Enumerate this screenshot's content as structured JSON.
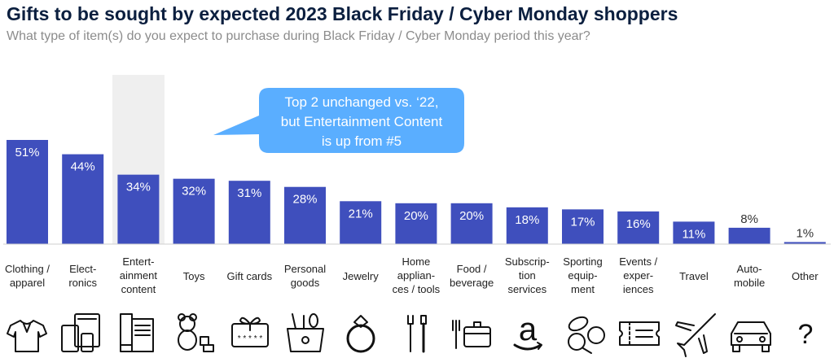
{
  "title": "Gifts to be sought by expected 2023 Black Friday / Cyber Monday shoppers",
  "subtitle": "What type of item(s) do you expect to purchase during Black Friday / Cyber Monday period this year?",
  "callout": {
    "lines": [
      "Top 2 unchanged vs. ‘22,",
      "but Entertainment Content",
      "is up from #5"
    ],
    "color": "#5aaeff"
  },
  "chart_data": {
    "type": "bar",
    "title": "Gifts to be sought by expected 2023 Black Friday / Cyber Monday shoppers",
    "subtitle": "What type of item(s) do you expect to purchase during Black Friday / Cyber Monday period this year?",
    "categories": [
      [
        "Clothing /",
        "apparel"
      ],
      [
        "Elect-",
        "ronics"
      ],
      [
        "Entert-",
        "ainment",
        "content"
      ],
      [
        "Toys"
      ],
      [
        "Gift cards"
      ],
      [
        "Personal",
        "goods"
      ],
      [
        "Jewelry"
      ],
      [
        "Home",
        "applian-",
        "ces / tools"
      ],
      [
        "Food /",
        "beverage"
      ],
      [
        "Subscrip-",
        "tion",
        "services"
      ],
      [
        "Sporting",
        "equip-",
        "ment"
      ],
      [
        "Events /",
        "exper-",
        "iences"
      ],
      [
        "Travel"
      ],
      [
        "Auto-",
        "mobile"
      ],
      [
        "Other"
      ]
    ],
    "values": [
      51,
      44,
      34,
      32,
      31,
      28,
      21,
      20,
      20,
      18,
      17,
      16,
      11,
      8,
      1
    ],
    "value_labels": [
      "51%",
      "44%",
      "34%",
      "32%",
      "31%",
      "28%",
      "21%",
      "20%",
      "20%",
      "18%",
      "17%",
      "16%",
      "11%",
      "8%",
      "1%"
    ],
    "highlighted_index": 2,
    "bar_color": "#3f4fbd",
    "highlight_color": "#efefef",
    "ylim": [
      0,
      60
    ],
    "grid": false,
    "xlabel": "",
    "ylabel": ""
  },
  "icons": [
    "shirt-icon",
    "devices-icon",
    "books-icon",
    "teddy-bear-icon",
    "gift-card-icon",
    "cosmetics-bag-icon",
    "ring-icon",
    "tools-icon",
    "food-container-icon",
    "amazon-icon",
    "sports-balls-icon",
    "ticket-icon",
    "airplane-icon",
    "car-icon",
    "question-icon"
  ],
  "icon_texts": {
    "amazon": "a",
    "question": "?",
    "card_dots": "* * * * *"
  }
}
